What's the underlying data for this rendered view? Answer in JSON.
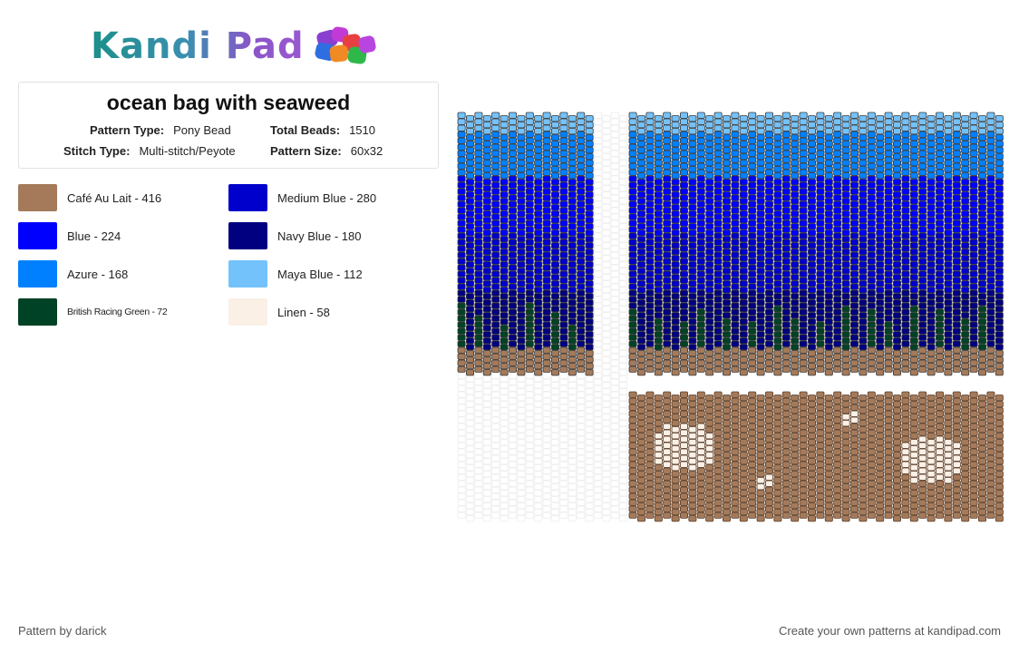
{
  "header": {
    "logo_text": "Kandi Pad"
  },
  "pattern_info": {
    "title": "ocean bag with seaweed",
    "pattern_type_label": "Pattern Type:",
    "pattern_type_value": "Pony Bead",
    "total_beads_label": "Total Beads:",
    "total_beads_value": "1510",
    "stitch_type_label": "Stitch Type:",
    "stitch_type_value": "Multi-stitch/Peyote",
    "pattern_size_label": "Pattern Size:",
    "pattern_size_value": "60x32"
  },
  "legend": [
    {
      "label": "Café Au Lait - 416",
      "color": "#a47a5a"
    },
    {
      "label": "Medium Blue - 280",
      "color": "#0000cc"
    },
    {
      "label": "Blue - 224",
      "color": "#0000ff"
    },
    {
      "label": "Navy Blue - 180",
      "color": "#000080"
    },
    {
      "label": "Azure - 168",
      "color": "#0080ff"
    },
    {
      "label": "Maya Blue - 112",
      "color": "#73c2fb"
    },
    {
      "label": "British Racing Green - 72",
      "color": "#004225"
    },
    {
      "label": "Linen - 58",
      "color": "#faf0e6"
    }
  ],
  "footer": {
    "credit": "Pattern by darick",
    "cta": "Create your own patterns at kandipad.com"
  }
}
